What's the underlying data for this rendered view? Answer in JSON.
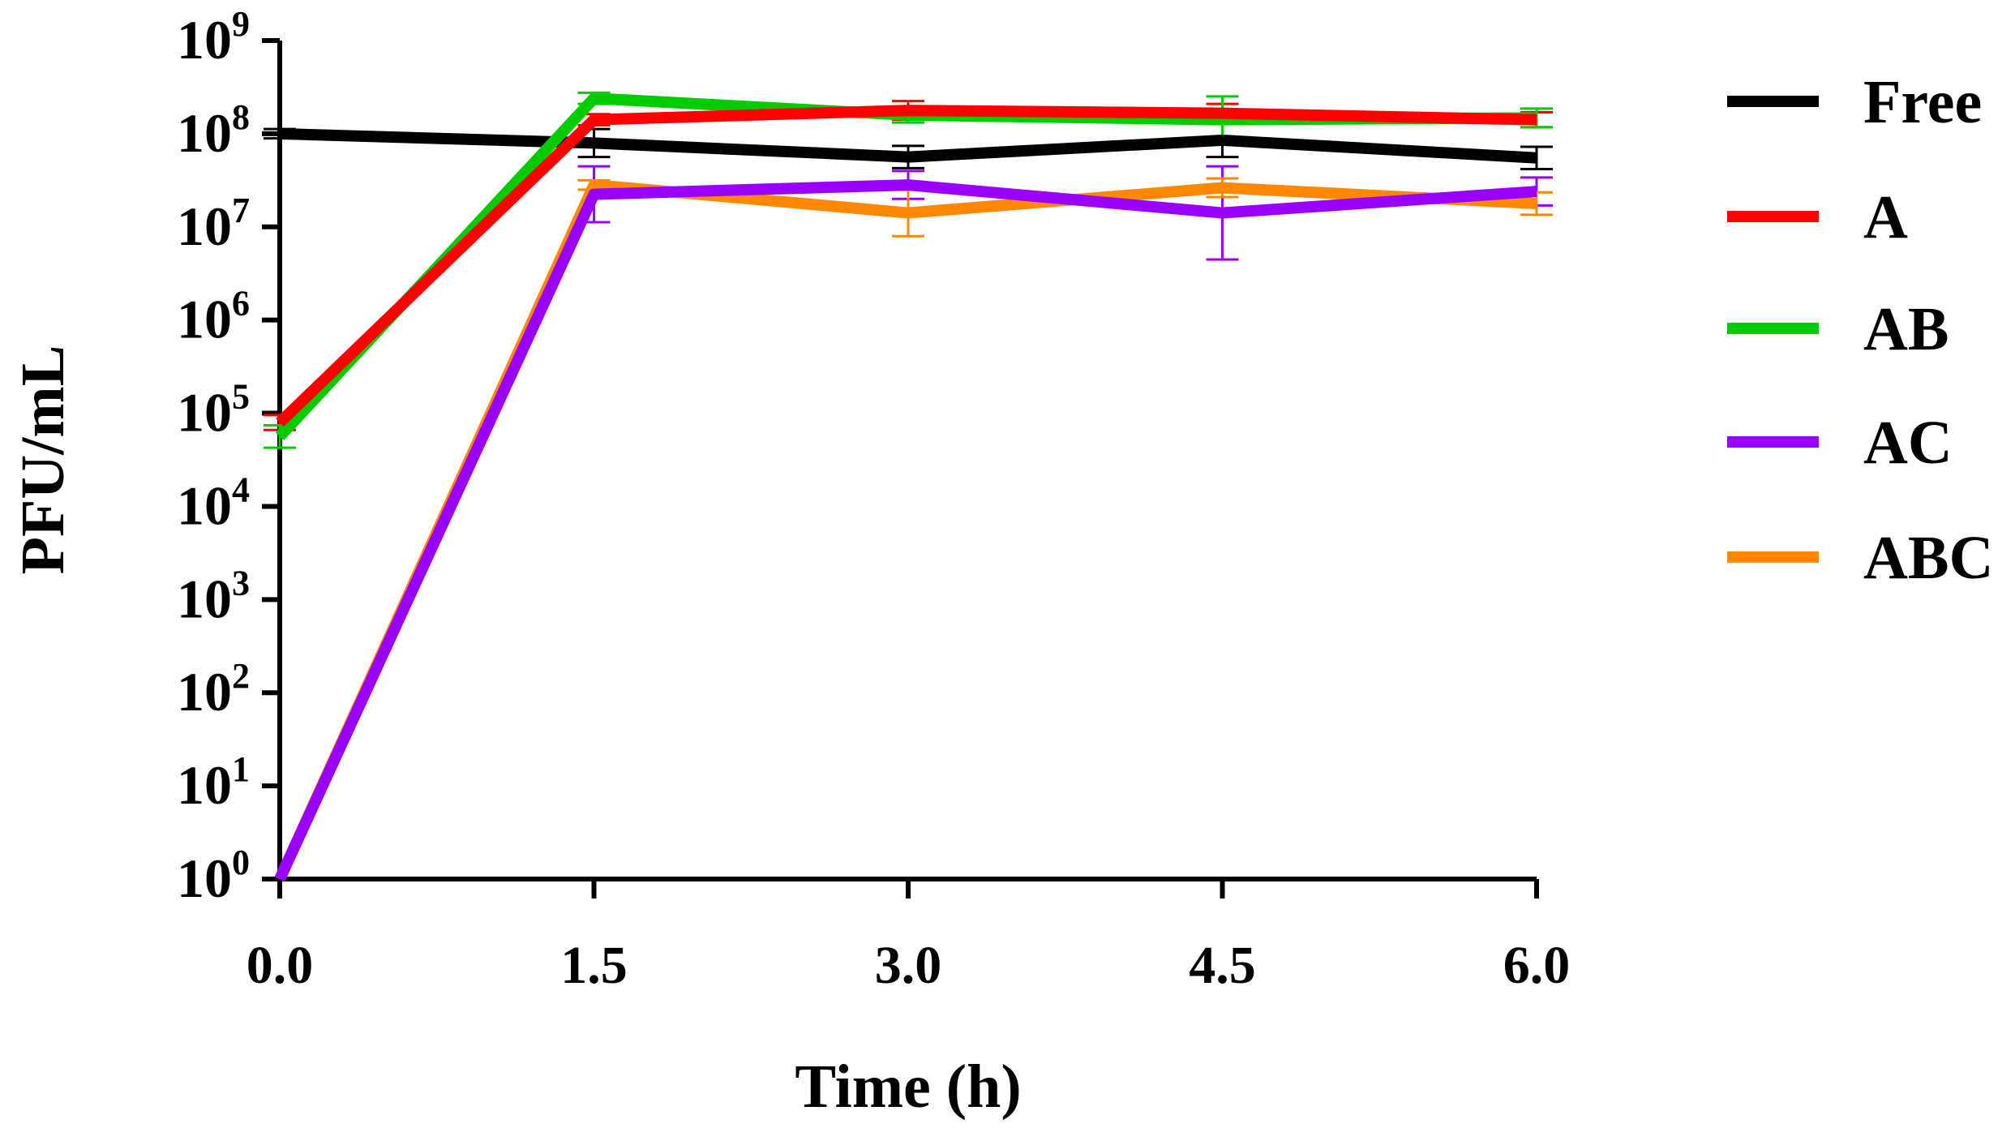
{
  "chart_data": {
    "type": "line",
    "title": "",
    "xlabel": "Time (h)",
    "ylabel": "PFU/mL",
    "yscale": "log10",
    "ylim": [
      1,
      1000000000
    ],
    "xlim": [
      0,
      6
    ],
    "x": [
      0.0,
      1.5,
      3.0,
      4.5,
      6.0
    ],
    "x_tick_labels": [
      "0.0",
      "1.5",
      "3.0",
      "4.5",
      "6.0"
    ],
    "y_ticks": [
      {
        "base": "10",
        "exp": "0"
      },
      {
        "base": "10",
        "exp": "1"
      },
      {
        "base": "10",
        "exp": "2"
      },
      {
        "base": "10",
        "exp": "3"
      },
      {
        "base": "10",
        "exp": "4"
      },
      {
        "base": "10",
        "exp": "5"
      },
      {
        "base": "10",
        "exp": "6"
      },
      {
        "base": "10",
        "exp": "7"
      },
      {
        "base": "10",
        "exp": "8"
      },
      {
        "base": "10",
        "exp": "9"
      }
    ],
    "legend_position": "right",
    "series": [
      {
        "name": "Free",
        "color": "#000000",
        "log10_values": [
          8.0,
          7.9,
          7.75,
          7.93,
          7.74
        ],
        "log10_err": [
          0.05,
          0.15,
          0.12,
          0.18,
          0.12
        ]
      },
      {
        "name": "A",
        "color": "#ff0000",
        "log10_values": [
          4.9,
          8.15,
          8.25,
          8.22,
          8.15
        ],
        "log10_err": [
          0.08,
          0.06,
          0.1,
          0.1,
          0.08
        ]
      },
      {
        "name": "AB",
        "color": "#00cc00",
        "log10_values": [
          4.75,
          8.38,
          8.2,
          8.15,
          8.17
        ],
        "log10_err": [
          0.12,
          0.06,
          0.08,
          0.25,
          0.1
        ]
      },
      {
        "name": "AC",
        "color": "#9900ff",
        "log10_values": [
          0.0,
          7.35,
          7.45,
          7.15,
          7.38
        ],
        "log10_err": [
          0.0,
          0.3,
          0.15,
          0.5,
          0.15
        ]
      },
      {
        "name": "ABC",
        "color": "#ff8800",
        "log10_values": [
          0.0,
          7.45,
          7.15,
          7.42,
          7.25
        ],
        "log10_err": [
          0.0,
          0.05,
          0.25,
          0.1,
          0.12
        ]
      }
    ]
  }
}
